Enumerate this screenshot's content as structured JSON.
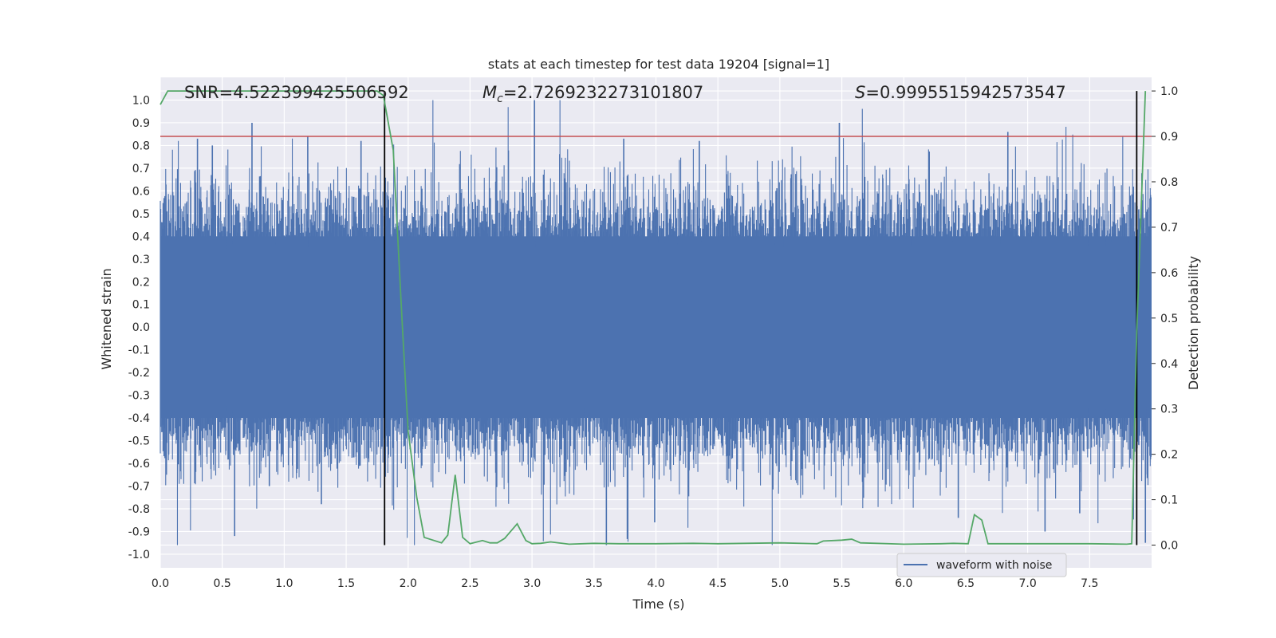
{
  "chart_data": {
    "type": "line",
    "title": "stats at each timestep for test data 19204 [signal=1]",
    "xlabel": "Time (s)",
    "ylabel_left": "Whitened strain",
    "ylabel_right": "Detection probability",
    "xlim": [
      0,
      8.0
    ],
    "ylim_left": [
      -1.06,
      1.1
    ],
    "ylim_right": [
      -0.05,
      1.03
    ],
    "x_ticks": [
      0.0,
      0.5,
      1.0,
      1.5,
      2.0,
      2.5,
      3.0,
      3.5,
      4.0,
      4.5,
      5.0,
      5.5,
      6.0,
      6.5,
      7.0,
      7.5
    ],
    "x_tick_labels": [
      "0.0",
      "0.5",
      "1.0",
      "1.5",
      "2.0",
      "2.5",
      "3.0",
      "3.5",
      "4.0",
      "4.5",
      "5.0",
      "5.5",
      "6.0",
      "6.5",
      "7.0",
      "7.5"
    ],
    "y_left_ticks": [
      1.0,
      0.9,
      0.8,
      0.7,
      0.6,
      0.5,
      0.4,
      0.3,
      0.2,
      0.1,
      0.0,
      -0.1,
      -0.2,
      -0.3,
      -0.4,
      -0.5,
      -0.6,
      -0.7,
      -0.8,
      -0.9,
      -1.0
    ],
    "y_left_tick_labels": [
      "1.0",
      "0.9",
      "0.8",
      "0.7",
      "0.6",
      "0.5",
      "0.4",
      "0.3",
      "0.2",
      "0.1",
      "0.0",
      "-0.1",
      "-0.2",
      "-0.3",
      "-0.4",
      "-0.5",
      "-0.6",
      "-0.7",
      "-0.8",
      "-0.9",
      "-1.0"
    ],
    "y_right_ticks": [
      1.0,
      0.9,
      0.8,
      0.7,
      0.6,
      0.5,
      0.4,
      0.3,
      0.2,
      0.1,
      0.0
    ],
    "y_right_tick_labels": [
      "1.0",
      "0.9",
      "0.8",
      "0.7",
      "0.6",
      "0.5",
      "0.4",
      "0.3",
      "0.2",
      "0.1",
      "0.0"
    ],
    "threshold_right_axis": 0.9,
    "vertical_markers_s": [
      1.81,
      7.88
    ],
    "annotations": {
      "snr": "SNR=4.522399425506592",
      "mc_symbol": "M",
      "mc_subscript": "c",
      "mc_value": "=2.7269232273101807",
      "s_symbol": "S",
      "s_value": "=0.9995515942573547"
    },
    "legend": {
      "label": "waveform with noise",
      "placement": "lower-right"
    },
    "series": [
      {
        "name": "waveform with noise",
        "axis": "left",
        "color": "#4c72b0",
        "description_stats": {
          "core_amplitude": 0.4,
          "max": 1.0,
          "min": -0.96
        },
        "spikes": [
          {
            "x": 0.3,
            "y": 0.83
          },
          {
            "x": 0.42,
            "y": 0.8
          },
          {
            "x": 0.6,
            "y": -0.92
          },
          {
            "x": 0.74,
            "y": 0.9
          },
          {
            "x": 0.88,
            "y": -0.7
          },
          {
            "x": 1.19,
            "y": 0.84
          },
          {
            "x": 1.3,
            "y": -0.78
          },
          {
            "x": 1.62,
            "y": 0.82
          },
          {
            "x": 3.02,
            "y": 1.0
          },
          {
            "x": 3.6,
            "y": -0.96
          },
          {
            "x": 3.74,
            "y": 0.83
          },
          {
            "x": 3.99,
            "y": -0.86
          },
          {
            "x": 4.35,
            "y": 0.82
          },
          {
            "x": 5.48,
            "y": 0.9
          },
          {
            "x": 6.44,
            "y": -0.84
          },
          {
            "x": 6.84,
            "y": 0.86
          },
          {
            "x": 7.14,
            "y": -0.9
          },
          {
            "x": 7.42,
            "y": -0.82
          },
          {
            "x": 7.95,
            "y": -0.95
          }
        ]
      },
      {
        "name": "detection probability",
        "axis": "right",
        "color": "#55a868",
        "x": [
          0.0,
          0.06,
          0.5,
          1.0,
          1.5,
          1.75,
          1.8,
          1.88,
          1.95,
          2.0,
          2.07,
          2.13,
          2.27,
          2.32,
          2.38,
          2.44,
          2.5,
          2.6,
          2.66,
          2.72,
          2.78,
          2.88,
          2.95,
          3.0,
          3.07,
          3.15,
          3.3,
          3.5,
          3.7,
          4.0,
          4.3,
          4.5,
          5.0,
          5.3,
          5.35,
          5.5,
          5.58,
          5.65,
          6.0,
          6.3,
          6.4,
          6.52,
          6.57,
          6.63,
          6.68,
          6.8,
          7.0,
          7.3,
          7.5,
          7.8,
          7.84,
          7.88,
          7.95
        ],
        "y": [
          0.97,
          1.0,
          1.0,
          1.0,
          1.0,
          1.0,
          0.99,
          0.87,
          0.5,
          0.25,
          0.105,
          0.017,
          0.005,
          0.022,
          0.155,
          0.017,
          0.003,
          0.01,
          0.005,
          0.005,
          0.015,
          0.047,
          0.01,
          0.003,
          0.004,
          0.007,
          0.002,
          0.004,
          0.003,
          0.003,
          0.004,
          0.003,
          0.005,
          0.003,
          0.009,
          0.011,
          0.013,
          0.005,
          0.002,
          0.003,
          0.004,
          0.003,
          0.067,
          0.055,
          0.003,
          0.003,
          0.003,
          0.003,
          0.003,
          0.002,
          0.003,
          0.47,
          1.0
        ]
      }
    ]
  }
}
